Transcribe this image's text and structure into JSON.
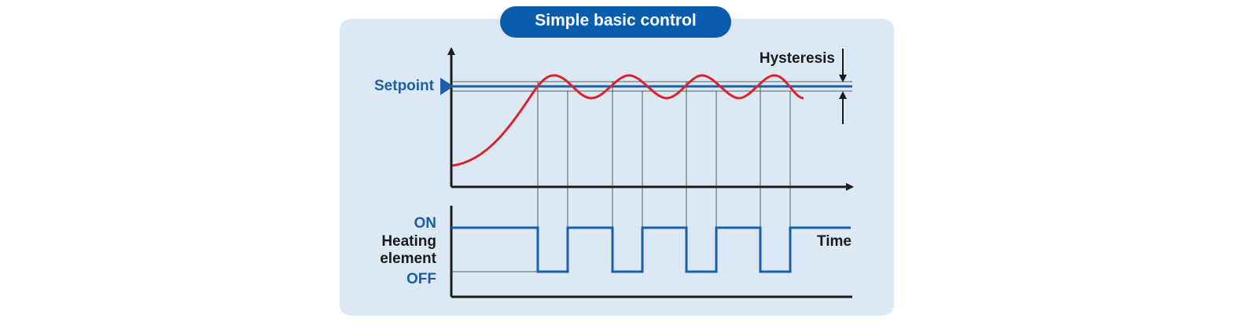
{
  "header": {
    "title": "Simple basic control"
  },
  "labels": {
    "setpoint": "Setpoint",
    "hysteresis": "Hysteresis",
    "on": "ON",
    "heating_element": [
      "Heating",
      "element"
    ],
    "off": "OFF",
    "time": "Time"
  }
}
